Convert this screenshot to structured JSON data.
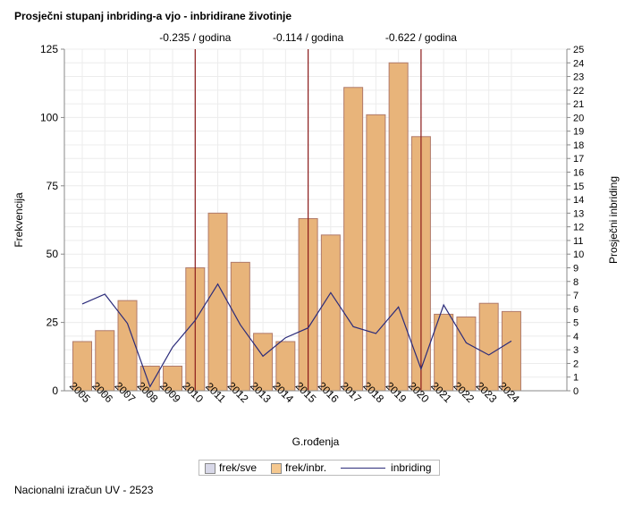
{
  "title": "Prosječni stupanj inbriding-a vjo - inbridirane životinje",
  "footer": "Nacionalni izračun UV - 2523",
  "chart_data": {
    "type": "bar",
    "categories": [
      "2005",
      "2006",
      "2007",
      "2008",
      "2009",
      "2010",
      "2011",
      "2012",
      "2013",
      "2014",
      "2015",
      "2016",
      "2017",
      "2018",
      "2019",
      "2020",
      "2021",
      "2022",
      "2023",
      "2024"
    ],
    "series": [
      {
        "name": "frek/inbr.",
        "type": "bar",
        "axis": "left",
        "color": "#e8b47a",
        "values": [
          18,
          22,
          33,
          9,
          9,
          45,
          65,
          47,
          21,
          18,
          63,
          57,
          111,
          101,
          120,
          93,
          28,
          27,
          32,
          29
        ]
      },
      {
        "name": "inbriding",
        "type": "line",
        "axis": "right",
        "color": "#2b2b7a",
        "values": [
          6.35,
          7.07,
          4.93,
          0.3,
          3.19,
          5.15,
          7.81,
          4.82,
          2.53,
          3.88,
          4.6,
          7.18,
          4.69,
          4.19,
          6.13,
          1.59,
          6.28,
          3.51,
          2.62,
          3.64
        ]
      }
    ],
    "xlabel": "G.rođenja",
    "ylabel": "Frekvencija",
    "y2label": "Prosječni inbriding",
    "ylim": [
      0,
      125
    ],
    "yticks": [
      0,
      25,
      50,
      75,
      100,
      125
    ],
    "y2lim": [
      0,
      25
    ],
    "y2ticks": [
      0,
      1,
      2,
      3,
      4,
      5,
      6,
      7,
      8,
      9,
      10,
      11,
      12,
      13,
      14,
      15,
      16,
      17,
      18,
      19,
      20,
      21,
      22,
      23,
      24,
      25
    ],
    "reference_lines": [
      {
        "x": "2010",
        "label": "-0.235 / godina",
        "color": "#8b1a1a"
      },
      {
        "x": "2015",
        "label": "-0.114 / godina",
        "color": "#8b1a1a"
      },
      {
        "x": "2020",
        "label": "-0.622 / godina",
        "color": "#8b1a1a"
      }
    ],
    "grid": true,
    "legend": {
      "position": "bottom",
      "entries": [
        {
          "label": "frek/sve",
          "color": "#d8d8e8"
        },
        {
          "label": "frek/inbr.",
          "color": "#f5c88f"
        },
        {
          "label": "inbriding",
          "color": "#2b2b7a"
        }
      ]
    }
  }
}
